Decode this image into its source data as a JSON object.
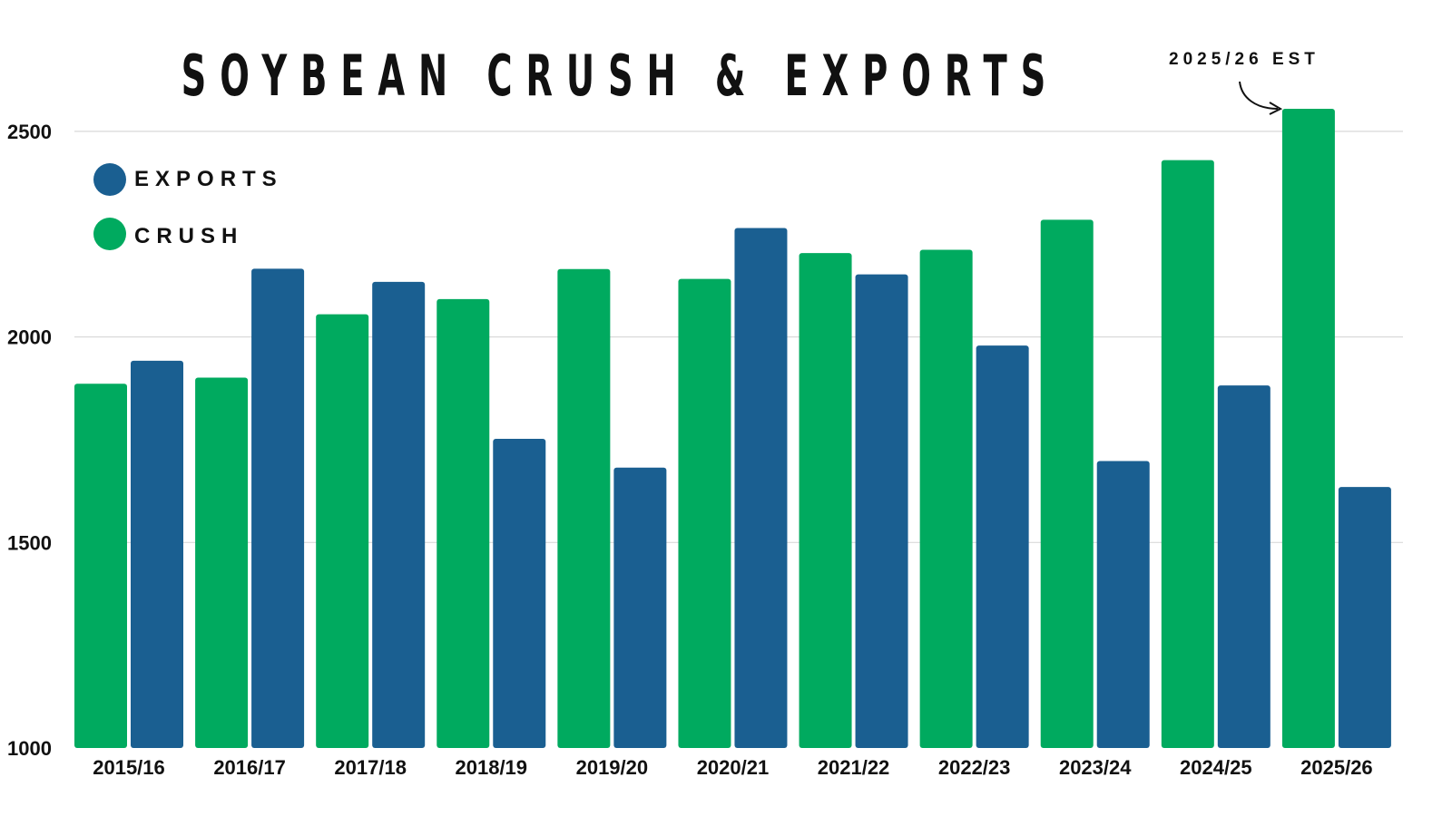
{
  "chart_data": {
    "type": "bar",
    "title": "SOYBEAN CRUSH & EXPORTS",
    "annotation": "2025/26 EST",
    "categories": [
      "2015/16",
      "2016/17",
      "2017/18",
      "2018/19",
      "2019/20",
      "2020/21",
      "2021/22",
      "2022/23",
      "2023/24",
      "2024/25",
      "2025/26"
    ],
    "series": [
      {
        "name": "CRUSH",
        "color": "#00AA5F",
        "values": [
          1886,
          1901,
          2055,
          2092,
          2165,
          2141,
          2204,
          2212,
          2285,
          2430,
          2555
        ]
      },
      {
        "name": "EXPORTS",
        "color": "#1A5F91",
        "values": [
          1942,
          2166,
          2134,
          1752,
          1682,
          2265,
          2152,
          1979,
          1698,
          1882,
          1635
        ]
      }
    ],
    "legend": [
      {
        "name": "EXPORTS",
        "color": "#1A5F91"
      },
      {
        "name": "CRUSH",
        "color": "#00AA5F"
      }
    ],
    "ylim": [
      1000,
      2600
    ],
    "yticks": [
      1000,
      1500,
      2000,
      2500
    ],
    "grid": true,
    "legend_position": "top-left",
    "xlabel": "",
    "ylabel": ""
  }
}
